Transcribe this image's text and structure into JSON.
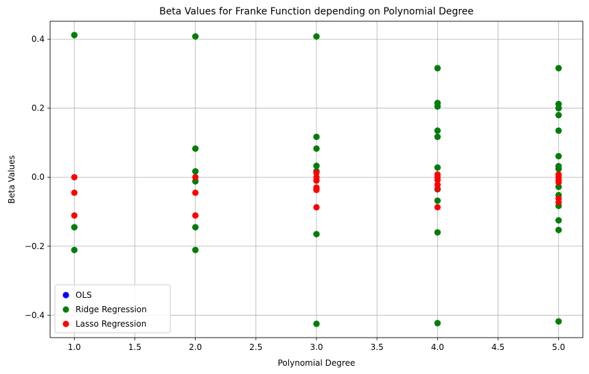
{
  "chart_data": {
    "type": "scatter",
    "title": "Beta Values for Franke Function depending on Polynomial Degree",
    "xlabel": "Polynomial Degree",
    "ylabel": "Beta Values",
    "xlim": [
      0.8,
      5.2
    ],
    "ylim": [
      -0.465,
      0.452
    ],
    "xticks": [
      1.0,
      1.5,
      2.0,
      2.5,
      3.0,
      3.5,
      4.0,
      4.5,
      5.0
    ],
    "xtick_labels": [
      "1.0",
      "1.5",
      "2.0",
      "2.5",
      "3.0",
      "3.5",
      "4.0",
      "4.5",
      "5.0"
    ],
    "yticks": [
      -0.4,
      -0.2,
      0.0,
      0.2,
      0.4
    ],
    "ytick_labels": [
      "−0.4",
      "−0.2",
      "0.0",
      "0.2",
      "0.4"
    ],
    "grid": true,
    "legend_position": "lower-left",
    "series": [
      {
        "name": "OLS",
        "color": "#0000ff",
        "points": [
          [
            1,
            0.412
          ],
          [
            1,
            -0.145
          ],
          [
            1,
            -0.211
          ],
          [
            2,
            0.408
          ],
          [
            2,
            0.083
          ],
          [
            2,
            0.017
          ],
          [
            2,
            -0.012
          ],
          [
            2,
            -0.145
          ],
          [
            2,
            -0.211
          ],
          [
            3,
            0.408
          ],
          [
            3,
            0.117
          ],
          [
            3,
            0.083
          ],
          [
            3,
            0.033
          ],
          [
            3,
            0.017
          ],
          [
            3,
            -0.035
          ],
          [
            3,
            -0.165
          ],
          [
            3,
            -0.425
          ],
          [
            4,
            0.316
          ],
          [
            4,
            0.215
          ],
          [
            4,
            0.205
          ],
          [
            4,
            0.135
          ],
          [
            4,
            0.117
          ],
          [
            4,
            0.028
          ],
          [
            4,
            -0.035
          ],
          [
            4,
            -0.068
          ],
          [
            4,
            -0.16
          ],
          [
            4,
            -0.423
          ],
          [
            5,
            0.316
          ],
          [
            5,
            0.212
          ],
          [
            5,
            0.2
          ],
          [
            5,
            0.18
          ],
          [
            5,
            0.135
          ],
          [
            5,
            0.061
          ],
          [
            5,
            0.032
          ],
          [
            5,
            0.024
          ],
          [
            5,
            -0.028
          ],
          [
            5,
            -0.052
          ],
          [
            5,
            -0.083
          ],
          [
            5,
            -0.125
          ],
          [
            5,
            -0.153
          ],
          [
            5,
            -0.418
          ]
        ]
      },
      {
        "name": "Ridge Regression",
        "color": "#008000",
        "points": [
          [
            1,
            0.412
          ],
          [
            1,
            -0.145
          ],
          [
            1,
            -0.211
          ],
          [
            2,
            0.408
          ],
          [
            2,
            0.083
          ],
          [
            2,
            0.017
          ],
          [
            2,
            -0.012
          ],
          [
            2,
            -0.145
          ],
          [
            2,
            -0.211
          ],
          [
            3,
            0.408
          ],
          [
            3,
            0.117
          ],
          [
            3,
            0.083
          ],
          [
            3,
            0.033
          ],
          [
            3,
            0.017
          ],
          [
            3,
            -0.035
          ],
          [
            3,
            -0.165
          ],
          [
            3,
            -0.425
          ],
          [
            4,
            0.316
          ],
          [
            4,
            0.215
          ],
          [
            4,
            0.205
          ],
          [
            4,
            0.135
          ],
          [
            4,
            0.117
          ],
          [
            4,
            0.028
          ],
          [
            4,
            -0.035
          ],
          [
            4,
            -0.068
          ],
          [
            4,
            -0.16
          ],
          [
            4,
            -0.423
          ],
          [
            5,
            0.316
          ],
          [
            5,
            0.212
          ],
          [
            5,
            0.2
          ],
          [
            5,
            0.18
          ],
          [
            5,
            0.135
          ],
          [
            5,
            0.061
          ],
          [
            5,
            0.032
          ],
          [
            5,
            0.024
          ],
          [
            5,
            -0.028
          ],
          [
            5,
            -0.052
          ],
          [
            5,
            -0.083
          ],
          [
            5,
            -0.125
          ],
          [
            5,
            -0.153
          ],
          [
            5,
            -0.418
          ]
        ]
      },
      {
        "name": "Lasso Regression",
        "color": "#ff0000",
        "points": [
          [
            1,
            0.0
          ],
          [
            1,
            -0.045
          ],
          [
            1,
            -0.111
          ],
          [
            2,
            0.0
          ],
          [
            2,
            -0.045
          ],
          [
            2,
            -0.111
          ],
          [
            3,
            0.013
          ],
          [
            3,
            0.0
          ],
          [
            3,
            -0.01
          ],
          [
            3,
            -0.03
          ],
          [
            3,
            -0.037
          ],
          [
            3,
            -0.087
          ],
          [
            4,
            0.008
          ],
          [
            4,
            0.0
          ],
          [
            4,
            -0.008
          ],
          [
            4,
            -0.022
          ],
          [
            4,
            -0.033
          ],
          [
            4,
            -0.087
          ],
          [
            5,
            0.008
          ],
          [
            5,
            0.0
          ],
          [
            5,
            -0.008
          ],
          [
            5,
            -0.015
          ],
          [
            5,
            -0.062
          ],
          [
            5,
            -0.073
          ]
        ]
      }
    ]
  }
}
